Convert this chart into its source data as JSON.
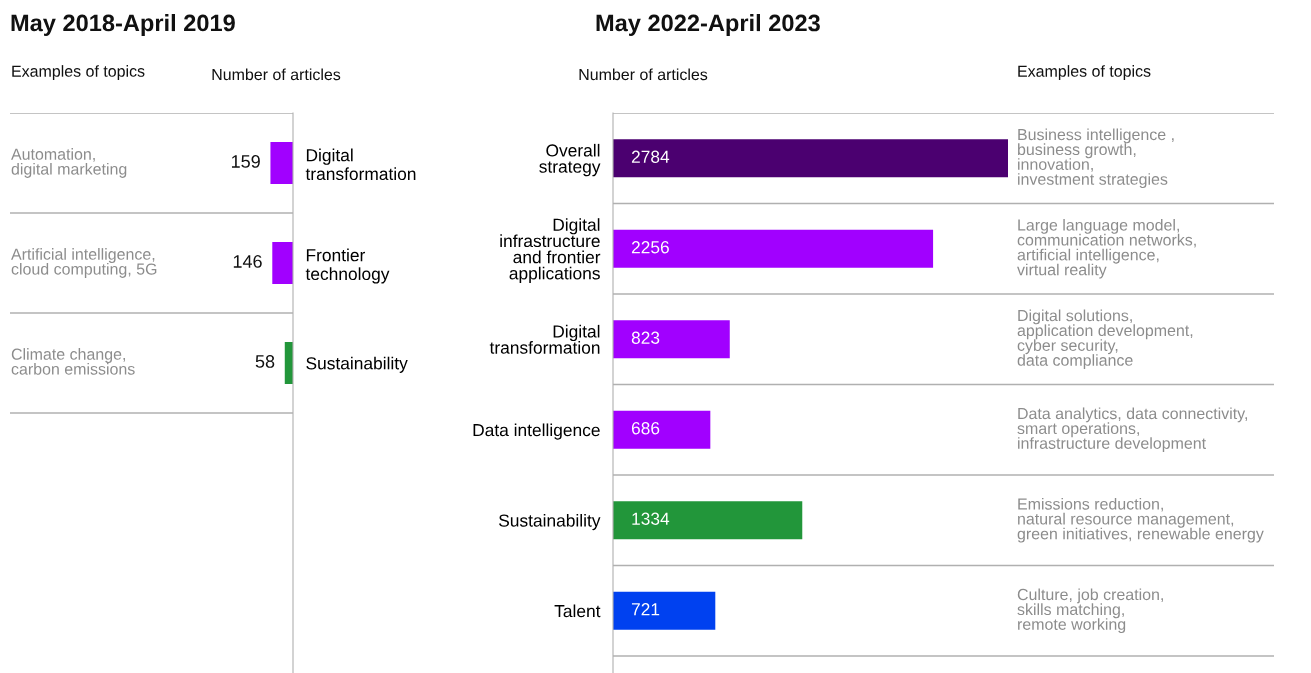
{
  "chart_data": [
    {
      "type": "bar",
      "orientation": "horizontal",
      "title": "May 2018-April 2019",
      "xlabel": "Number of articles",
      "categories": [
        "Digital\ntransformation",
        "Frontier\ntechnology",
        "Sustainability"
      ],
      "values": [
        159,
        146,
        58
      ],
      "colors": [
        "#a100ff",
        "#a100ff",
        "#22963a"
      ],
      "data_labels": true,
      "grid": "y",
      "tick_labels": "y",
      "annotations": [
        "Examples of topics",
        "Automation,\ndigital marketing",
        "Artificial intelligence,\ncloud computing, 5G",
        "Climate change,\ncarbon emissions"
      ]
    },
    {
      "type": "bar",
      "orientation": "horizontal",
      "title": "May 2022-April 2023",
      "xlabel": "Number of articles",
      "categories": [
        "Overall\nstrategy",
        "Digital\ninfrastructure\nand frontier\napplications",
        "Digital\ntransformation",
        "Data intelligence",
        "Sustainability",
        "Talent"
      ],
      "values": [
        2784,
        2256,
        823,
        686,
        1334,
        721
      ],
      "colors": [
        "#4b0070",
        "#a100ff",
        "#a100ff",
        "#a100ff",
        "#22963a",
        "#0041f0"
      ],
      "data_labels": true,
      "grid": "y",
      "tick_labels": "y",
      "annotations": [
        "Examples of topics",
        "Business intelligence ,\nbusiness growth,\ninnovation,\ninvestment strategies",
        "Large language model,\ncommunication networks,\nartificial intelligence,\nvirtual reality",
        "Digital solutions,\napplication development,\ncyber security,\ndata compliance",
        "Data analytics, data connectivity,\nsmart operations,\ninfrastructure development",
        "Emissions reduction,\nnatural resource management,\ngreen initiatives, renewable energy",
        "Culture, job creation,\nskills matching,\nremote working"
      ]
    }
  ]
}
